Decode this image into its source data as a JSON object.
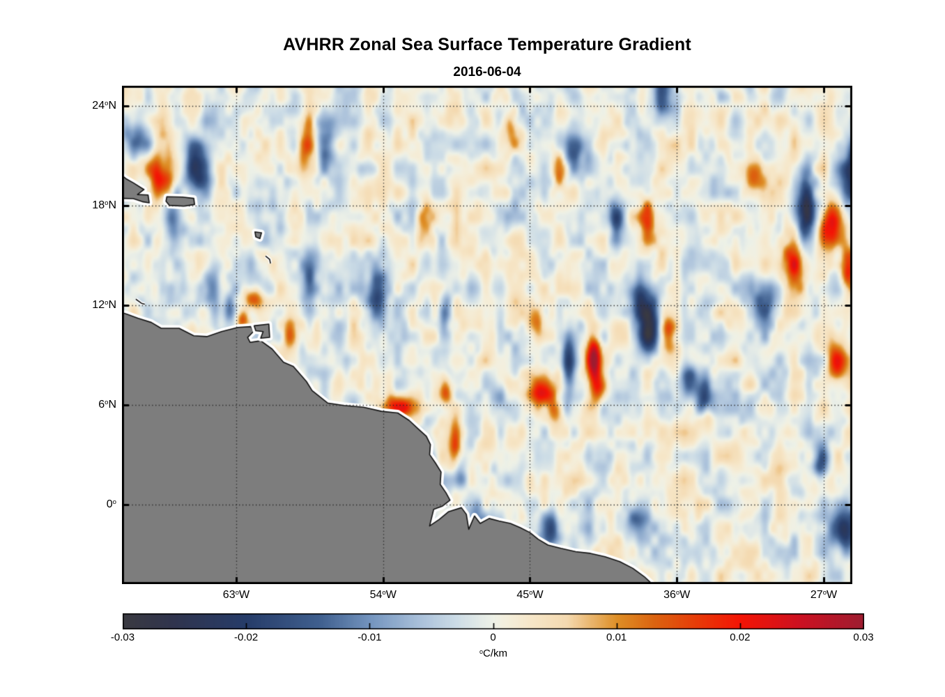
{
  "figure": {
    "title": "AVHRR Zonal Sea Surface Temperature Gradient",
    "subtitle": "2016-06-04"
  },
  "chart_data": {
    "type": "heatmap",
    "title": "AVHRR Zonal Sea Surface Temperature Gradient",
    "subtitle": "2016-06-04",
    "extent": {
      "lon_min": -70.0,
      "lon_max": -25.25,
      "lat_min": -4.8,
      "lat_max": 25.2
    },
    "grid": {
      "lons": [
        -63,
        -54,
        -45,
        -36,
        -27
      ],
      "lats": [
        24,
        18,
        12,
        6,
        0
      ],
      "style": "dotted"
    },
    "x_ticks": [
      {
        "lon": -63,
        "main": "63",
        "sup": "o",
        "suffix": "W"
      },
      {
        "lon": -54,
        "main": "54",
        "sup": "o",
        "suffix": "W"
      },
      {
        "lon": -45,
        "main": "45",
        "sup": "o",
        "suffix": "W"
      },
      {
        "lon": -36,
        "main": "36",
        "sup": "o",
        "suffix": "W"
      },
      {
        "lon": -27,
        "main": "27",
        "sup": "o",
        "suffix": "W"
      }
    ],
    "y_ticks": [
      {
        "lat": 24,
        "main": "24",
        "sup": "o",
        "suffix": "N"
      },
      {
        "lat": 18,
        "main": "18",
        "sup": "o",
        "suffix": "N"
      },
      {
        "lat": 12,
        "main": "12",
        "sup": "o",
        "suffix": "N"
      },
      {
        "lat": 6,
        "main": "6",
        "sup": "o",
        "suffix": "N"
      },
      {
        "lat": 0,
        "main": "0",
        "sup": "o",
        "suffix": ""
      }
    ],
    "colorbar": {
      "orientation": "horizontal",
      "domain": [
        -0.03,
        0.03
      ],
      "ticks": [
        {
          "value": -0.03,
          "label": "-0.03"
        },
        {
          "value": -0.02,
          "label": "-0.02"
        },
        {
          "value": -0.01,
          "label": "-0.01"
        },
        {
          "value": 0,
          "label": "0"
        },
        {
          "value": 0.01,
          "label": "0.01"
        },
        {
          "value": 0.02,
          "label": "0.02"
        },
        {
          "value": 0.03,
          "label": "0.03"
        }
      ],
      "unit_sup": "o",
      "unit_text": "C/km"
    },
    "colormap": {
      "name": "balance-diverging",
      "stops": [
        [
          -0.03,
          "#3a3a41"
        ],
        [
          -0.026,
          "#30344d"
        ],
        [
          -0.02,
          "#263c69"
        ],
        [
          -0.014,
          "#40608f"
        ],
        [
          -0.01,
          "#7394be"
        ],
        [
          -0.006,
          "#a9c0da"
        ],
        [
          -0.003,
          "#ccdce6"
        ],
        [
          -0.001,
          "#e4ebe7"
        ],
        [
          0.0,
          "#eef1e7"
        ],
        [
          0.001,
          "#f4efdd"
        ],
        [
          0.003,
          "#f6e7c9"
        ],
        [
          0.006,
          "#f4d9af"
        ],
        [
          0.01,
          "#de8f26"
        ],
        [
          0.013,
          "#db6410"
        ],
        [
          0.017,
          "#e93507"
        ],
        [
          0.02,
          "#f41405"
        ],
        [
          0.025,
          "#cb1122"
        ],
        [
          0.03,
          "#9e1d30"
        ]
      ]
    },
    "land_color": "#7d7d7d",
    "coast_color": "#111111",
    "nodata_color": "#ffffff",
    "noise": {
      "seed": 7.3,
      "amp": 0.0082,
      "scale1_lon": 0.9,
      "scale1_lat": 1.45,
      "scale2_lon": 0.45,
      "scale2_lat": 0.72,
      "w1": 0.62,
      "w2": 0.38
    },
    "features_format": "[lon, lat, amplitude_degC_per_km, sigma_lon_deg, sigma_lat_deg]",
    "features": [
      [
        -65.4,
        20.3,
        -0.024,
        0.55,
        1.0
      ],
      [
        -66.9,
        17.2,
        -0.013,
        0.4,
        1.3
      ],
      [
        -69.1,
        22.1,
        -0.012,
        0.5,
        0.9
      ],
      [
        -57.6,
        21.8,
        -0.015,
        0.5,
        0.9
      ],
      [
        -58.5,
        13.2,
        -0.016,
        0.32,
        1.3
      ],
      [
        -64.3,
        13.0,
        -0.012,
        0.35,
        1.2
      ],
      [
        -63.4,
        11.8,
        -0.01,
        0.3,
        0.8
      ],
      [
        -54.3,
        12.4,
        -0.017,
        0.4,
        1.2
      ],
      [
        -50.2,
        11.5,
        -0.014,
        0.28,
        1.0
      ],
      [
        -51.3,
        2.2,
        -0.014,
        0.4,
        0.9
      ],
      [
        -49.4,
        2.0,
        -0.012,
        0.35,
        0.8
      ],
      [
        -48.3,
        -1.0,
        -0.013,
        0.4,
        0.7
      ],
      [
        -46.8,
        6.5,
        -0.012,
        0.3,
        0.7
      ],
      [
        -43.7,
        -1.5,
        -0.016,
        0.5,
        0.8
      ],
      [
        -38.5,
        -0.9,
        -0.012,
        0.5,
        0.7
      ],
      [
        -37.7,
        10.8,
        -0.027,
        0.55,
        1.2
      ],
      [
        -38.4,
        12.3,
        -0.015,
        0.5,
        0.8
      ],
      [
        -42.6,
        8.4,
        -0.018,
        0.3,
        1.2
      ],
      [
        -35.3,
        7.4,
        -0.014,
        0.4,
        0.8
      ],
      [
        -34.4,
        6.2,
        -0.015,
        0.35,
        0.9
      ],
      [
        -39.7,
        16.9,
        -0.016,
        0.3,
        1.1
      ],
      [
        -28.1,
        17.8,
        -0.027,
        0.38,
        1.6
      ],
      [
        -25.2,
        19.8,
        -0.023,
        0.5,
        1.3
      ],
      [
        -25.6,
        -1.5,
        -0.021,
        0.6,
        0.9
      ],
      [
        -27.2,
        2.4,
        -0.012,
        0.3,
        0.8
      ],
      [
        -30.6,
        12.4,
        -0.013,
        0.5,
        0.9
      ],
      [
        -42.3,
        21.3,
        -0.013,
        0.4,
        0.9
      ],
      [
        -37.0,
        24.5,
        -0.014,
        0.45,
        0.8
      ],
      [
        -67.6,
        19.9,
        0.022,
        0.5,
        0.85
      ],
      [
        -58.6,
        21.7,
        0.014,
        0.4,
        1.1
      ],
      [
        -62.0,
        12.4,
        0.016,
        0.45,
        0.5
      ],
      [
        -62.6,
        11.0,
        0.018,
        0.3,
        0.4
      ],
      [
        -59.7,
        10.2,
        0.013,
        0.3,
        0.7
      ],
      [
        -53.1,
        5.85,
        0.022,
        0.8,
        0.45
      ],
      [
        -50.2,
        6.8,
        0.016,
        0.3,
        0.6
      ],
      [
        -49.6,
        3.4,
        0.016,
        0.28,
        1.3
      ],
      [
        -51.7,
        0.6,
        0.017,
        0.3,
        0.5
      ],
      [
        -41.1,
        8.8,
        0.028,
        0.3,
        1.1
      ],
      [
        -44.6,
        11.1,
        0.013,
        0.5,
        0.8
      ],
      [
        -44.2,
        6.8,
        0.019,
        0.55,
        0.6
      ],
      [
        -43.4,
        5.6,
        0.012,
        0.3,
        0.5
      ],
      [
        -40.8,
        6.9,
        0.014,
        0.35,
        0.7
      ],
      [
        -36.6,
        10.4,
        0.015,
        0.4,
        0.7
      ],
      [
        -28.8,
        14.6,
        0.019,
        0.6,
        1.4
      ],
      [
        -26.5,
        16.9,
        0.024,
        0.5,
        0.9
      ],
      [
        -25.5,
        14.2,
        0.022,
        0.35,
        0.9
      ],
      [
        -26.2,
        8.6,
        0.016,
        0.4,
        0.8
      ],
      [
        -37.8,
        17.1,
        0.016,
        0.35,
        0.9
      ],
      [
        -34.2,
        5.2,
        0.013,
        0.3,
        0.5
      ],
      [
        -46.2,
        22.8,
        0.014,
        0.35,
        0.7
      ],
      [
        -51.4,
        17.3,
        0.012,
        0.35,
        0.7
      ],
      [
        -31.3,
        19.6,
        0.012,
        0.45,
        0.8
      ],
      [
        -43.2,
        19.9,
        0.014,
        0.3,
        0.9
      ]
    ],
    "land": {
      "mainland": [
        [
          -70.5,
          11.7
        ],
        [
          -69.7,
          11.45
        ],
        [
          -69.0,
          11.2
        ],
        [
          -68.2,
          10.95
        ],
        [
          -67.6,
          10.6
        ],
        [
          -66.5,
          10.6
        ],
        [
          -65.6,
          10.15
        ],
        [
          -64.8,
          10.1
        ],
        [
          -63.9,
          10.4
        ],
        [
          -62.9,
          10.65
        ],
        [
          -62.1,
          10.7
        ],
        [
          -61.95,
          10.4
        ],
        [
          -62.3,
          10.05
        ],
        [
          -62.15,
          9.75
        ],
        [
          -61.5,
          9.85
        ],
        [
          -60.8,
          9.35
        ],
        [
          -60.1,
          8.55
        ],
        [
          -59.5,
          8.3
        ],
        [
          -58.7,
          7.4
        ],
        [
          -58.35,
          6.85
        ],
        [
          -57.4,
          6.1
        ],
        [
          -56.4,
          5.95
        ],
        [
          -55.2,
          5.85
        ],
        [
          -54.1,
          5.6
        ],
        [
          -53.1,
          5.5
        ],
        [
          -52.4,
          5.05
        ],
        [
          -51.8,
          4.5
        ],
        [
          -51.35,
          4.1
        ],
        [
          -51.1,
          3.6
        ],
        [
          -51.15,
          3.0
        ],
        [
          -50.8,
          2.5
        ],
        [
          -50.45,
          1.95
        ],
        [
          -50.5,
          1.2
        ],
        [
          -50.15,
          0.7
        ],
        [
          -49.9,
          0.25
        ],
        [
          -50.35,
          -0.1
        ],
        [
          -50.9,
          -0.3
        ],
        [
          -51.15,
          -1.3
        ],
        [
          -50.55,
          -0.9
        ],
        [
          -50.0,
          -0.45
        ],
        [
          -49.2,
          -0.2
        ],
        [
          -48.9,
          -0.6
        ],
        [
          -48.75,
          -1.5
        ],
        [
          -48.4,
          -0.7
        ],
        [
          -48.05,
          -1.15
        ],
        [
          -47.5,
          -0.85
        ],
        [
          -46.9,
          -1.0
        ],
        [
          -46.2,
          -1.15
        ],
        [
          -45.6,
          -1.4
        ],
        [
          -45.0,
          -1.7
        ],
        [
          -44.5,
          -2.1
        ],
        [
          -43.9,
          -2.45
        ],
        [
          -43.1,
          -2.65
        ],
        [
          -42.2,
          -2.85
        ],
        [
          -41.3,
          -2.95
        ],
        [
          -40.4,
          -3.15
        ],
        [
          -39.5,
          -3.45
        ],
        [
          -38.7,
          -3.85
        ],
        [
          -38.0,
          -4.35
        ],
        [
          -37.4,
          -4.9
        ],
        [
          -37.0,
          -5.6
        ],
        [
          -70.5,
          -5.6
        ]
      ],
      "islands": [
        [
          [
            -70.4,
            20.1
          ],
          [
            -69.75,
            19.6
          ],
          [
            -69.3,
            19.35
          ],
          [
            -68.65,
            18.95
          ],
          [
            -69.05,
            18.65
          ],
          [
            -68.4,
            18.62
          ],
          [
            -68.33,
            18.15
          ],
          [
            -68.75,
            18.22
          ],
          [
            -69.3,
            18.4
          ],
          [
            -69.9,
            18.42
          ],
          [
            -70.4,
            18.3
          ]
        ],
        [
          [
            -67.25,
            18.52
          ],
          [
            -66.3,
            18.5
          ],
          [
            -65.6,
            18.42
          ],
          [
            -65.55,
            18.05
          ],
          [
            -66.2,
            17.95
          ],
          [
            -67.1,
            18.0
          ],
          [
            -67.3,
            18.25
          ]
        ],
        [
          [
            -61.9,
            10.75
          ],
          [
            -61.0,
            10.85
          ],
          [
            -60.95,
            10.05
          ],
          [
            -61.5,
            10.0
          ],
          [
            -61.35,
            10.4
          ],
          [
            -61.8,
            10.45
          ]
        ],
        [
          [
            -61.85,
            16.4
          ],
          [
            -61.45,
            16.35
          ],
          [
            -61.55,
            16.0
          ],
          [
            -61.8,
            16.1
          ]
        ]
      ],
      "coast_arcs": [
        [
          [
            -61.2,
            14.95
          ],
          [
            -60.95,
            14.75
          ],
          [
            -60.9,
            14.5
          ]
        ],
        [
          [
            -69.15,
            12.35
          ],
          [
            -68.8,
            12.1
          ],
          [
            -68.6,
            12.05
          ]
        ]
      ]
    }
  }
}
